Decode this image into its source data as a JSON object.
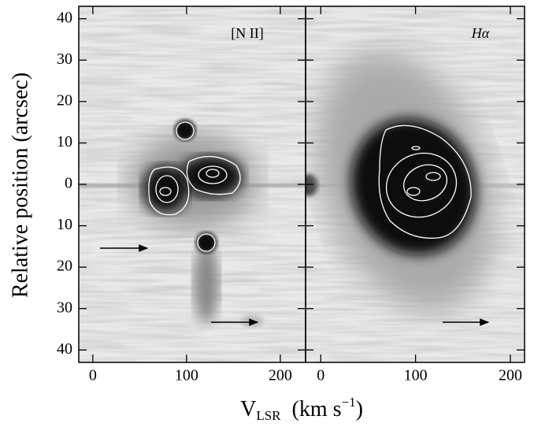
{
  "chart_data": [
    {
      "type": "image",
      "title": "[N II]",
      "xlim": [
        -15,
        227
      ],
      "xticks": [
        0,
        100,
        200
      ],
      "ylim": [
        -43,
        43
      ],
      "yticks": [
        40,
        30,
        20,
        10,
        0,
        {
          "value": -10,
          "label": "10"
        },
        {
          "value": -20,
          "label": "20"
        },
        {
          "value": -30,
          "label": "30"
        },
        {
          "value": -40,
          "label": "40"
        }
      ]
    },
    {
      "type": "image",
      "title": "Hα",
      "xlim": [
        -16,
        215
      ],
      "xticks": [
        0,
        100,
        200
      ]
    }
  ],
  "axes": {
    "y_label": "Relative position (arcsec)",
    "x_label": [
      "V",
      "LSR",
      "(km s",
      "−1",
      ")"
    ]
  }
}
